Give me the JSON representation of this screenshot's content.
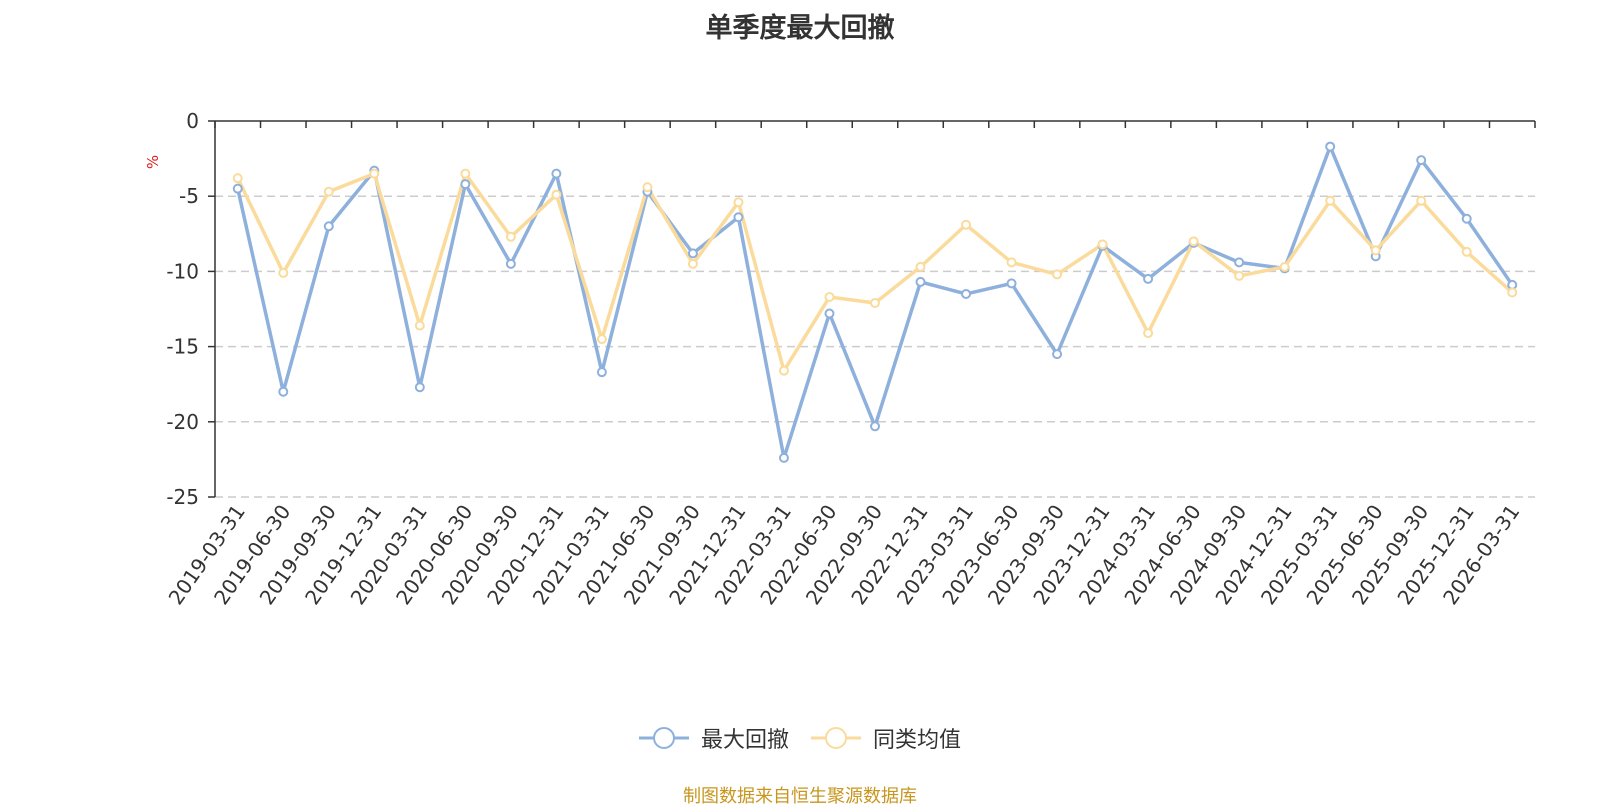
{
  "chart_data": {
    "type": "line",
    "title": "单季度最大回撤",
    "ylabel": "%",
    "xlabel": "",
    "ylim": [
      -25,
      0
    ],
    "yticks": [
      0,
      -5,
      -10,
      -15,
      -20,
      -25
    ],
    "categories": [
      "2019-03-31",
      "2019-06-30",
      "2019-09-30",
      "2019-12-31",
      "2020-03-31",
      "2020-06-30",
      "2020-09-30",
      "2020-12-31",
      "2021-03-31",
      "2021-06-30",
      "2021-09-30",
      "2021-12-31",
      "2022-03-31",
      "2022-06-30",
      "2022-09-30",
      "2022-12-31",
      "2023-03-31",
      "2023-06-30",
      "2023-09-30",
      "2023-12-31",
      "2024-03-31",
      "2024-06-30",
      "2024-09-30",
      "2024-12-31",
      "2025-03-31",
      "2025-06-30",
      "2025-09-30",
      "2025-12-31",
      "2026-03-31"
    ],
    "series": [
      {
        "name": "最大回撤",
        "color": "#8eb0dc",
        "values": [
          -4.5,
          -18.0,
          -7.0,
          -3.3,
          -17.7,
          -4.2,
          -9.5,
          -3.5,
          -16.7,
          -4.7,
          -8.8,
          -6.4,
          -22.4,
          -12.8,
          -20.3,
          -10.7,
          -11.5,
          -10.8,
          -15.5,
          -8.3,
          -10.5,
          -8.1,
          -9.4,
          -9.8,
          -1.7,
          -9.0,
          -2.6,
          -6.5,
          -10.9
        ]
      },
      {
        "name": "同类均值",
        "color": "#fbdb9c",
        "values": [
          -3.8,
          -10.1,
          -4.7,
          -3.5,
          -13.6,
          -3.5,
          -7.7,
          -4.9,
          -14.5,
          -4.4,
          -9.5,
          -5.4,
          -16.6,
          -11.7,
          -12.1,
          -9.7,
          -6.9,
          -9.4,
          -10.2,
          -8.2,
          -14.1,
          -8.0,
          -10.3,
          -9.7,
          -5.3,
          -8.6,
          -5.3,
          -8.7,
          -11.4
        ]
      }
    ],
    "grid": true,
    "legend_position": "bottom-center"
  },
  "source_text": "制图数据来自恒生聚源数据库"
}
